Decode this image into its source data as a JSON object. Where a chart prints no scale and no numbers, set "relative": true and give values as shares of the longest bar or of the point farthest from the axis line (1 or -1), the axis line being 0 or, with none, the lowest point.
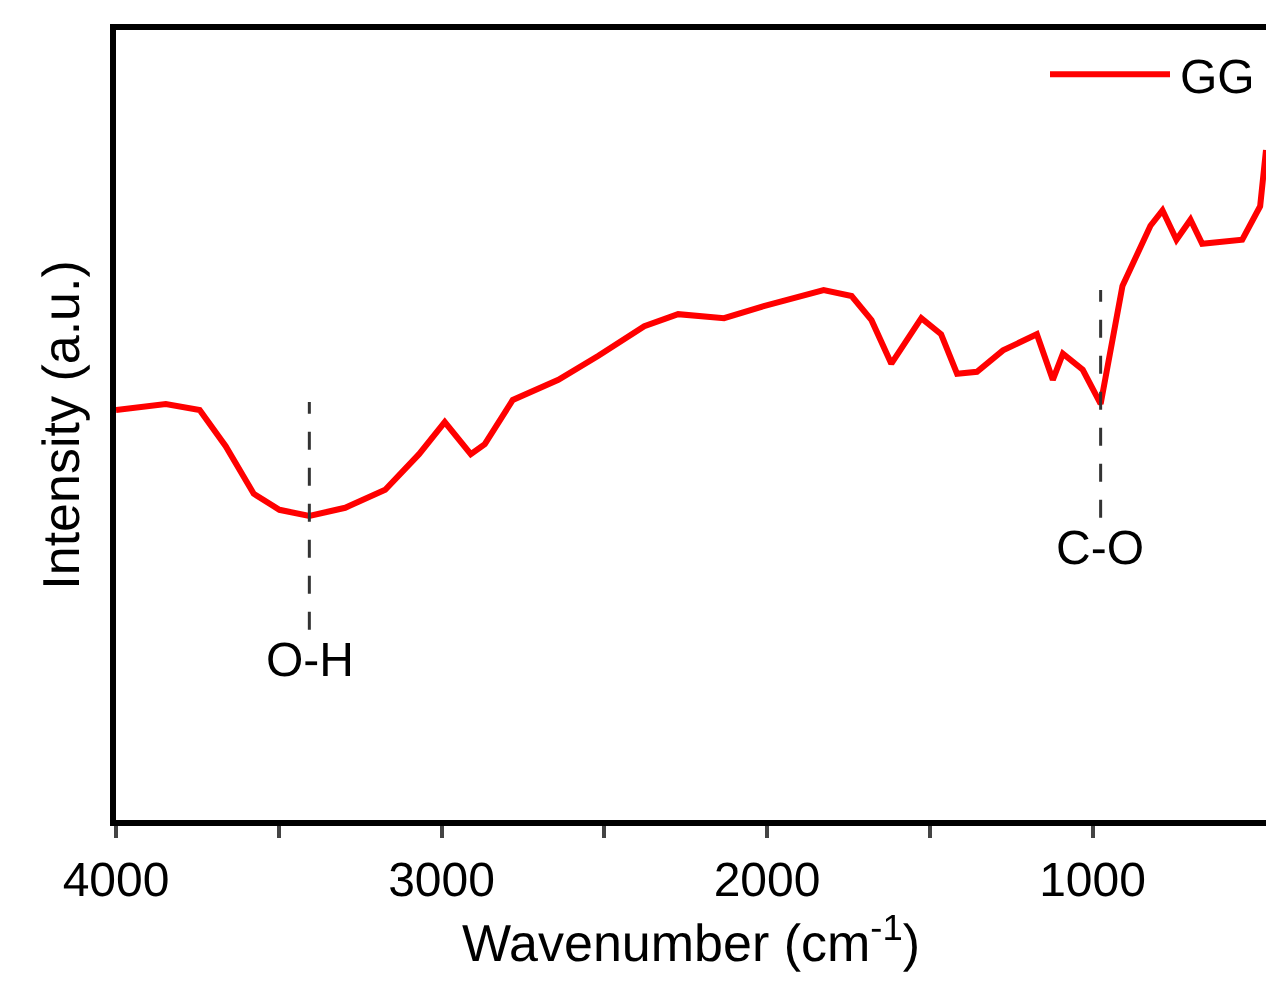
{
  "chart_data": {
    "type": "line",
    "relative": true,
    "xlabel": "Wavenumber (cm$^{-1}$)",
    "ylabel": "Intensity (a.u.)",
    "xlim": [
      4000,
      467
    ],
    "xticks": [
      4000,
      {
        "value": 3500,
        "label": null
      },
      3000,
      {
        "value": 2500,
        "label": null
      },
      2000,
      {
        "value": 1500,
        "label": null
      },
      1000
    ],
    "x": [
      4000,
      3847,
      3743,
      3663,
      3577,
      3498,
      3406,
      3296,
      3173,
      3069,
      2990,
      2910,
      2867,
      2781,
      2641,
      2518,
      2377,
      2273,
      2132,
      2010,
      1826,
      1740,
      1679,
      1618,
      1526,
      1465,
      1416,
      1355,
      1275,
      1171,
      1122,
      1091,
      1030,
      975,
      908,
      822,
      785,
      742,
      699,
      663,
      540,
      485,
      467
    ],
    "series": [
      {
        "name": "GG",
        "color": "#ff0000",
        "values": [
          0.612,
          0.621,
          0.612,
          0.558,
          0.487,
          0.463,
          0.454,
          0.466,
          0.493,
          0.546,
          0.594,
          0.546,
          0.561,
          0.627,
          0.657,
          0.693,
          0.737,
          0.755,
          0.749,
          0.767,
          0.791,
          0.782,
          0.746,
          0.681,
          0.749,
          0.725,
          0.666,
          0.669,
          0.701,
          0.725,
          0.657,
          0.696,
          0.672,
          0.621,
          0.797,
          0.887,
          0.91,
          0.866,
          0.896,
          0.86,
          0.866,
          0.916,
          1.0
        ]
      }
    ],
    "annotations": [
      {
        "text": "O-H",
        "x": 3406,
        "y": 0.454
      },
      {
        "text": "C-O",
        "x": 975,
        "y": 0.621
      }
    ],
    "legend": "top right",
    "marker": "none",
    "line_style": "solid"
  }
}
